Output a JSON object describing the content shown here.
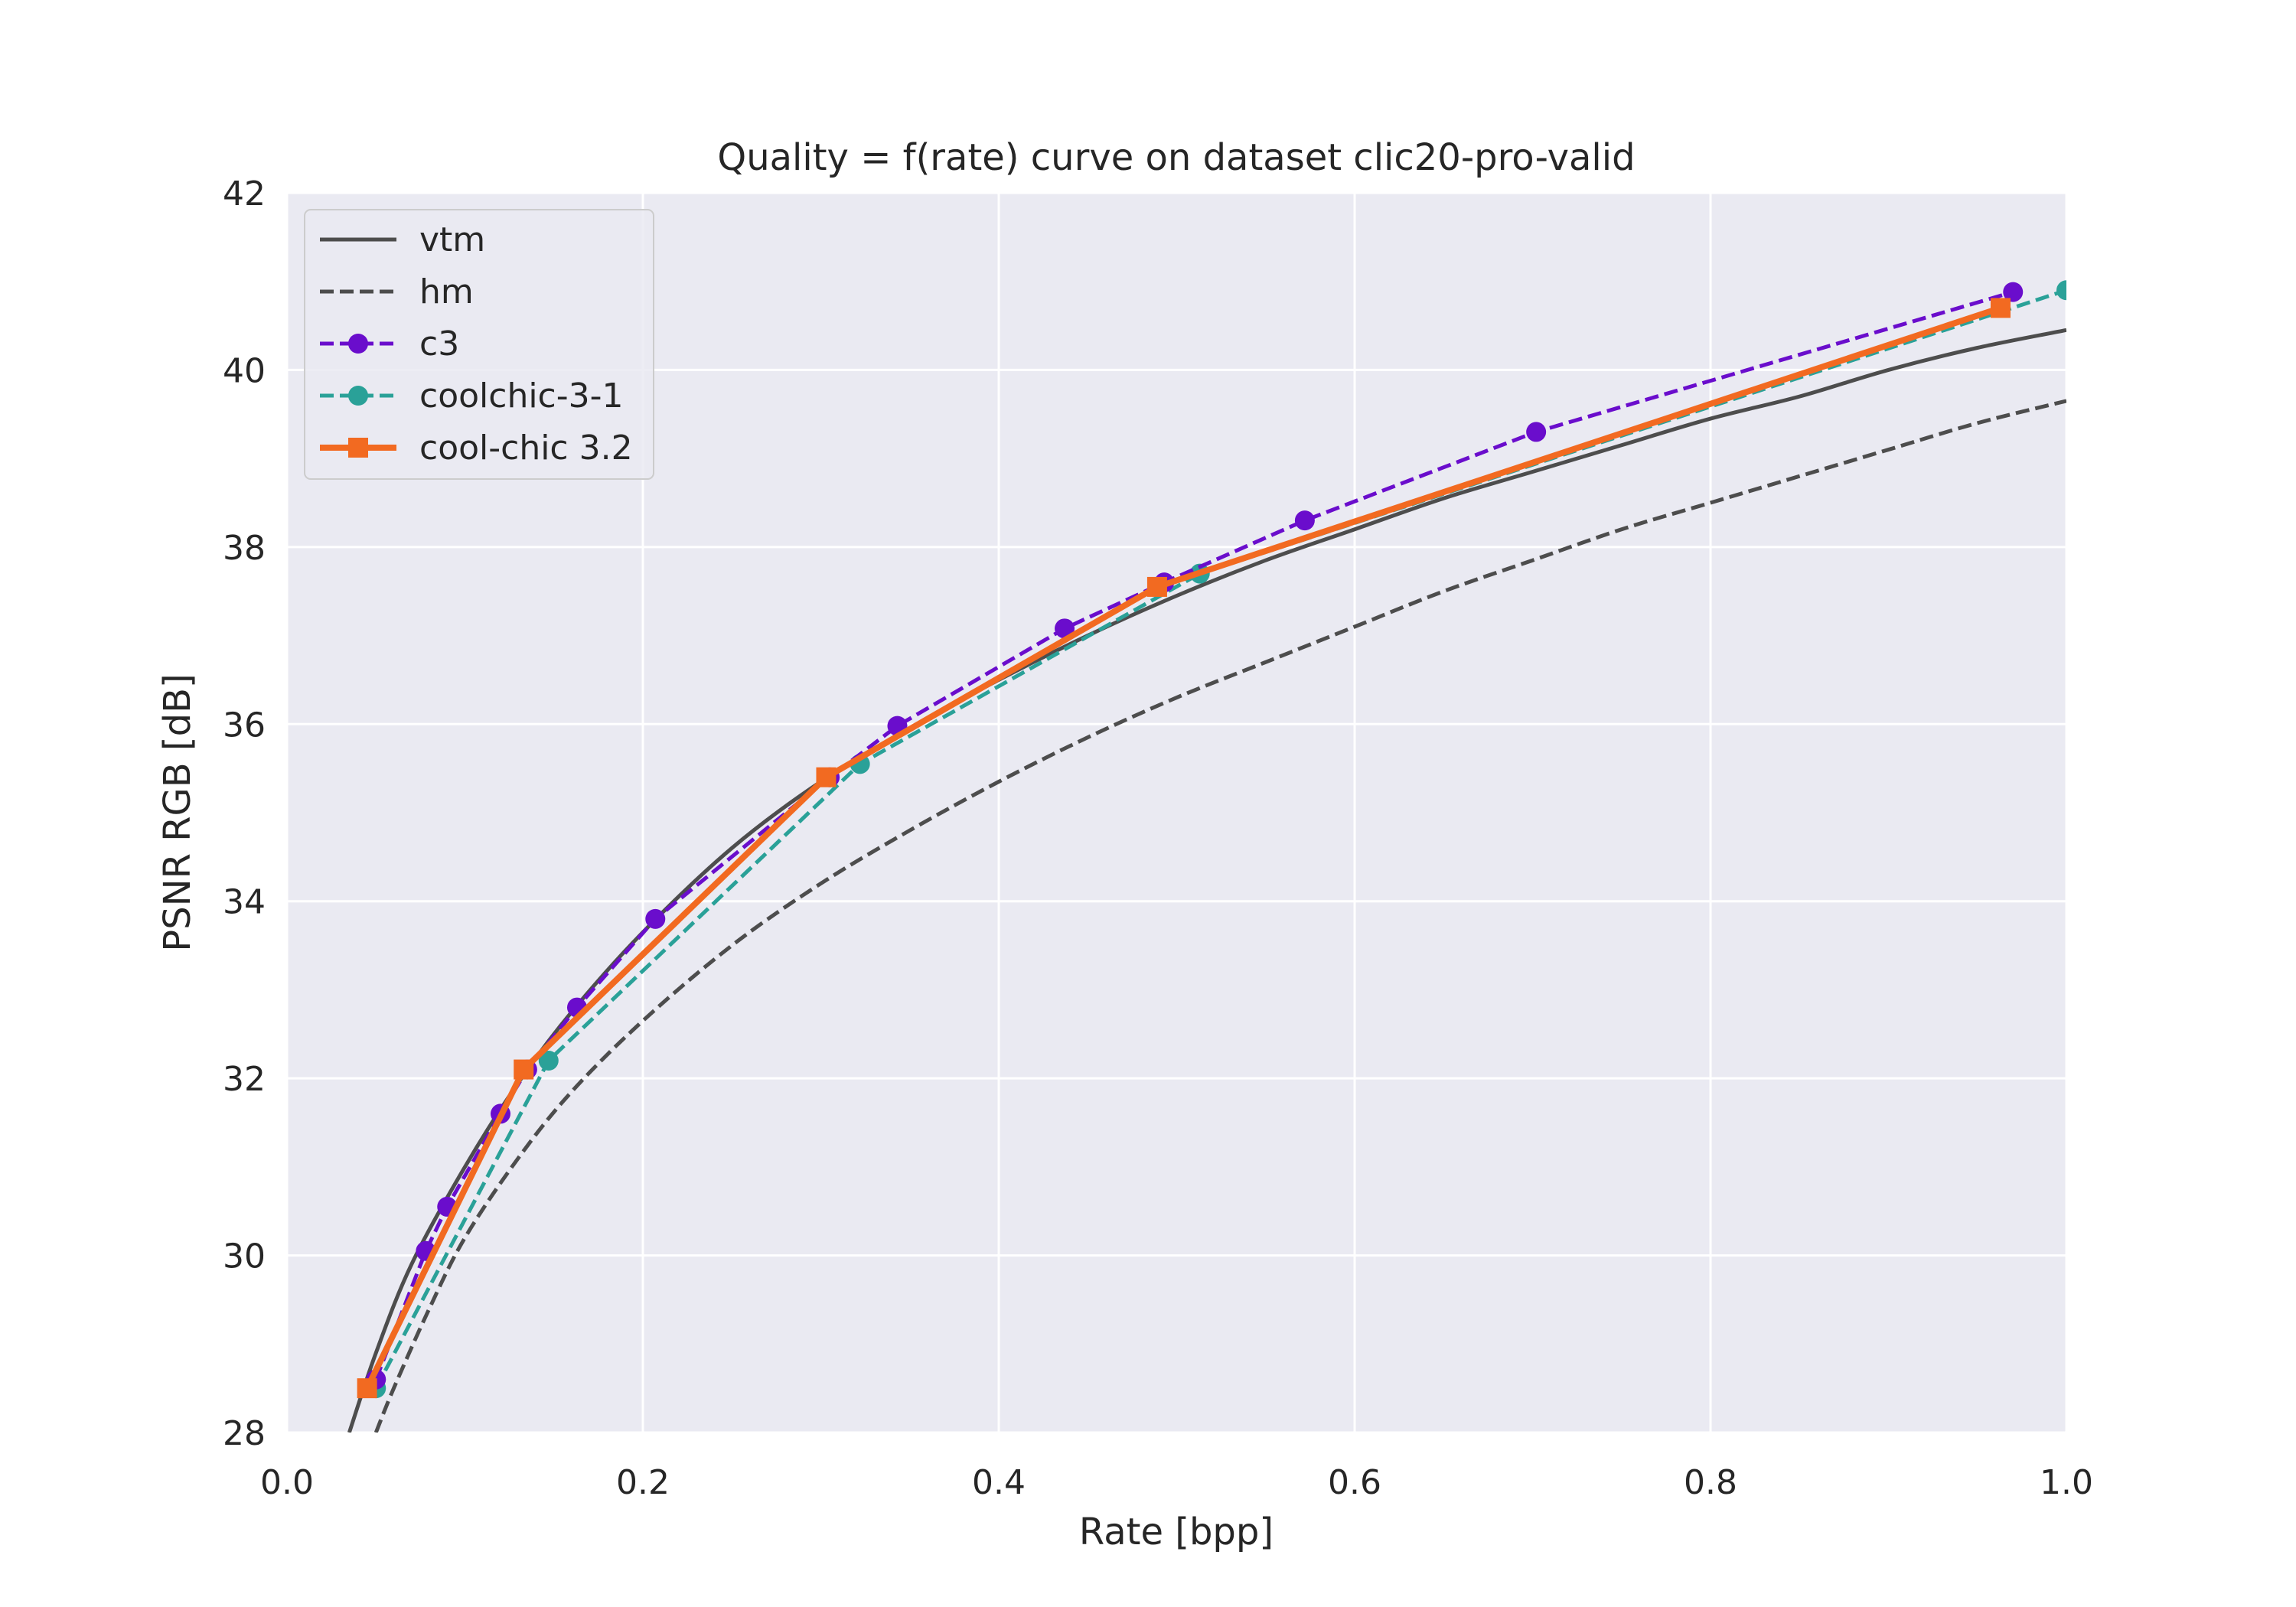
{
  "chart_data": {
    "type": "line",
    "title": "Quality = f(rate) curve on dataset clic20-pro-valid",
    "xlabel": "Rate [bpp]",
    "ylabel": "PSNR RGB [dB]",
    "xlim": [
      0.0,
      1.0
    ],
    "ylim": [
      28,
      42
    ],
    "xticks": [
      0.0,
      0.2,
      0.4,
      0.6,
      0.8,
      1.0
    ],
    "xtick_labels": [
      "0.0",
      "0.2",
      "0.4",
      "0.6",
      "0.8",
      "1.0"
    ],
    "yticks": [
      28,
      30,
      32,
      34,
      36,
      38,
      40,
      42
    ],
    "ytick_labels": [
      "28",
      "30",
      "32",
      "34",
      "36",
      "38",
      "40",
      "42"
    ],
    "grid": true,
    "legend_position": "top-left",
    "series": [
      {
        "name": "vtm",
        "color": "#4d4d4d",
        "style": "solid",
        "marker": "none",
        "x": [
          0.035,
          0.05,
          0.07,
          0.1,
          0.13,
          0.16,
          0.2,
          0.25,
          0.3,
          0.35,
          0.4,
          0.45,
          0.5,
          0.55,
          0.6,
          0.65,
          0.7,
          0.75,
          0.8,
          0.85,
          0.9,
          0.95,
          1.0
        ],
        "y": [
          28.0,
          28.9,
          29.9,
          31.0,
          31.95,
          32.75,
          33.65,
          34.6,
          35.35,
          35.95,
          36.5,
          37.0,
          37.45,
          37.85,
          38.2,
          38.55,
          38.85,
          39.15,
          39.45,
          39.7,
          40.0,
          40.25,
          40.45
        ]
      },
      {
        "name": "hm",
        "color": "#4d4d4d",
        "style": "dashed",
        "marker": "none",
        "x": [
          0.05,
          0.06,
          0.08,
          0.1,
          0.13,
          0.16,
          0.2,
          0.25,
          0.3,
          0.35,
          0.4,
          0.45,
          0.5,
          0.55,
          0.6,
          0.65,
          0.7,
          0.75,
          0.8,
          0.85,
          0.9,
          0.95,
          1.0
        ],
        "y": [
          28.0,
          28.5,
          29.4,
          30.2,
          31.1,
          31.85,
          32.65,
          33.5,
          34.2,
          34.8,
          35.35,
          35.85,
          36.3,
          36.7,
          37.1,
          37.5,
          37.85,
          38.2,
          38.5,
          38.8,
          39.1,
          39.4,
          39.65
        ]
      },
      {
        "name": "c3",
        "color": "#6a0dcc",
        "style": "dashed",
        "marker": "circle",
        "x": [
          0.05,
          0.078,
          0.09,
          0.12,
          0.135,
          0.163,
          0.207,
          0.305,
          0.343,
          0.437,
          0.493,
          0.572,
          0.702,
          0.97
        ],
        "y": [
          28.6,
          30.05,
          30.55,
          31.6,
          32.1,
          32.8,
          33.8,
          35.4,
          35.98,
          37.08,
          37.6,
          38.3,
          39.3,
          40.88
        ]
      },
      {
        "name": "coolchic-3-1",
        "color": "#2aa198",
        "style": "dashed",
        "marker": "circle",
        "x": [
          0.05,
          0.147,
          0.322,
          0.513,
          1.0
        ],
        "y": [
          28.5,
          32.2,
          35.55,
          37.7,
          40.9
        ]
      },
      {
        "name": "cool-chic 3.2",
        "color": "#f26a21",
        "style": "solid",
        "marker": "square",
        "x": [
          0.045,
          0.133,
          0.303,
          0.489,
          0.963
        ],
        "y": [
          28.5,
          32.1,
          35.4,
          37.55,
          40.7
        ]
      }
    ]
  }
}
